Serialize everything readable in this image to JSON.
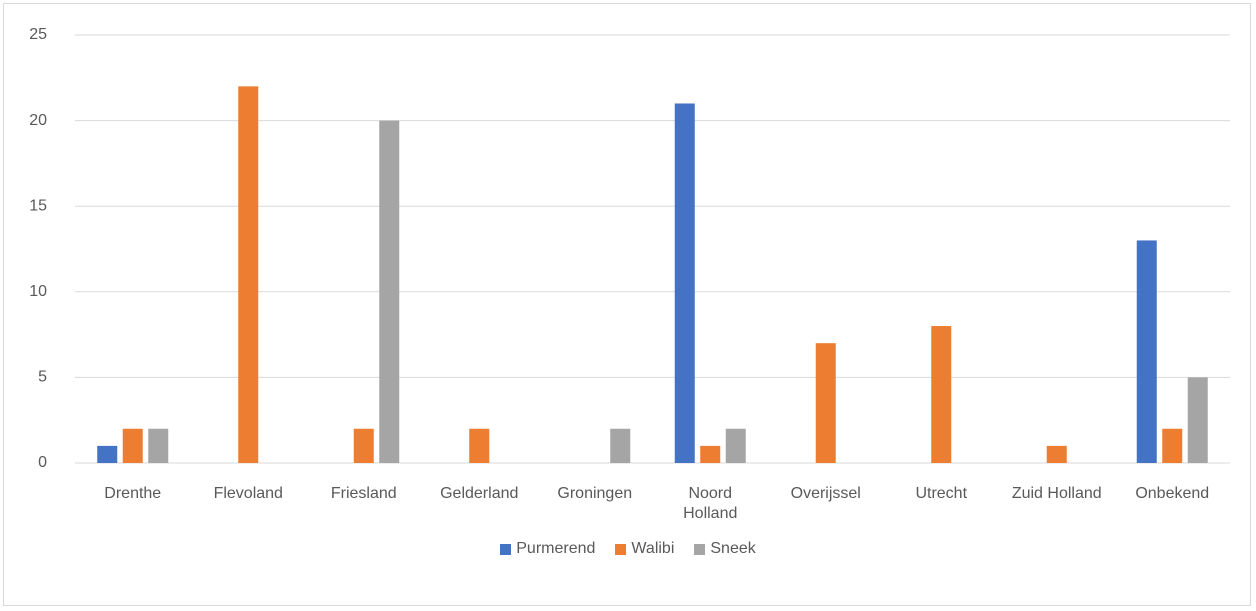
{
  "chart_data": {
    "type": "bar",
    "categories": [
      "Drenthe",
      "Flevoland",
      "Friesland",
      "Gelderland",
      "Groningen",
      "Noord Holland",
      "Overijssel",
      "Utrecht",
      "Zuid Holland",
      "Onbekend"
    ],
    "series": [
      {
        "name": "Purmerend",
        "color": "#4472c4",
        "values": [
          1,
          0,
          0,
          0,
          0,
          21,
          0,
          0,
          0,
          13
        ]
      },
      {
        "name": "Walibi",
        "color": "#ed7d31",
        "values": [
          2,
          22,
          2,
          2,
          0,
          1,
          7,
          8,
          1,
          2
        ]
      },
      {
        "name": "Sneek",
        "color": "#a5a5a5",
        "values": [
          2,
          0,
          20,
          0,
          2,
          2,
          0,
          0,
          0,
          5
        ]
      }
    ],
    "ylim": [
      0,
      25
    ],
    "yticks": [
      0,
      5,
      10,
      15,
      20,
      25
    ],
    "grid": true,
    "legend": "bottom"
  }
}
